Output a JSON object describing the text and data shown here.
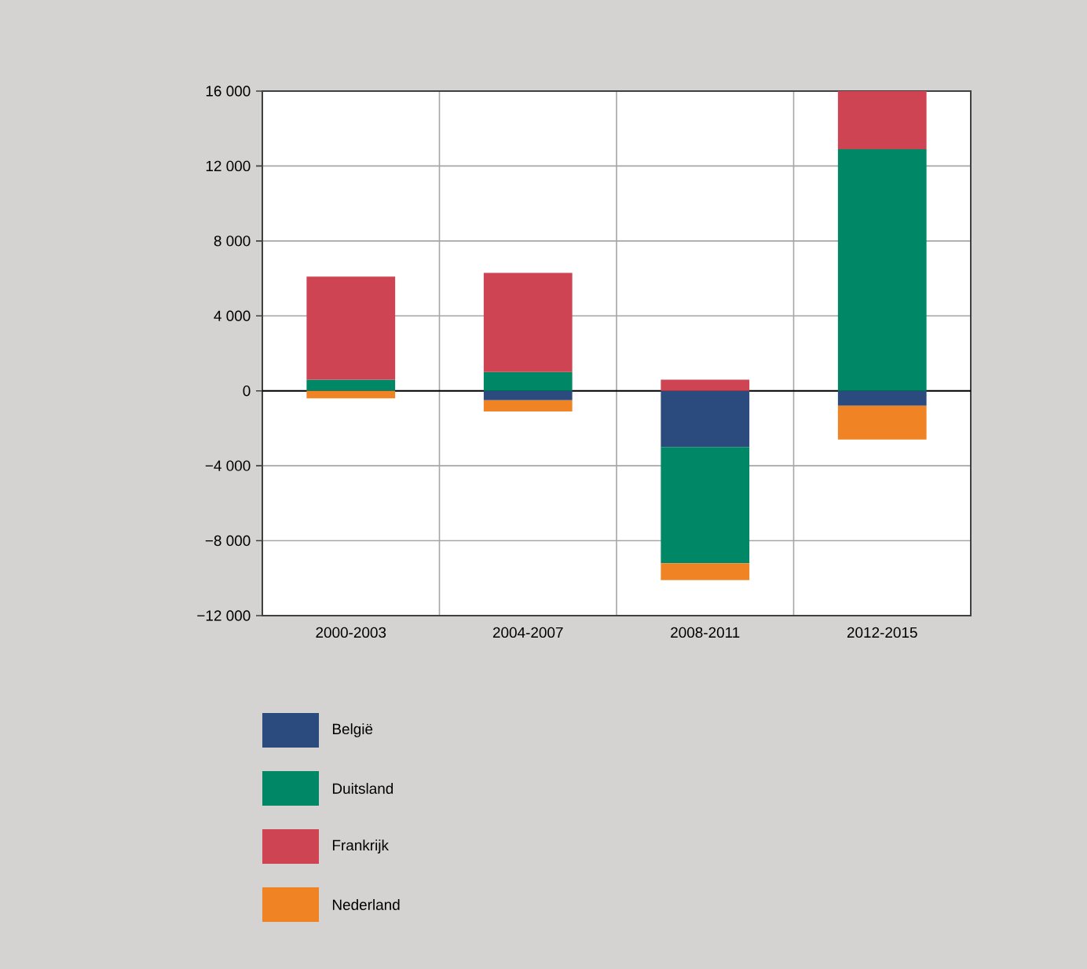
{
  "chart_data": {
    "type": "bar",
    "stacked": true,
    "categories": [
      "2000-2003",
      "2004-2007",
      "2008-2011",
      "2012-2015"
    ],
    "series": [
      {
        "name": "België",
        "color": "#2b4a7e",
        "values": [
          0,
          -500,
          -3000,
          -800
        ]
      },
      {
        "name": "Duitsland",
        "color": "#008866",
        "values": [
          600,
          1000,
          -6200,
          12900
        ]
      },
      {
        "name": "Frankrijk",
        "color": "#cf4452",
        "values": [
          5500,
          5300,
          600,
          3100
        ]
      },
      {
        "name": "Nederland",
        "color": "#f08424",
        "values": [
          -400,
          -600,
          -900,
          -1800
        ]
      }
    ],
    "ylim": [
      -12000,
      16000
    ],
    "yticks": [
      {
        "value": -12000,
        "label": "−12 000"
      },
      {
        "value": -8000,
        "label": "−8 000"
      },
      {
        "value": -4000,
        "label": "−4 000"
      },
      0,
      {
        "value": 4000,
        "label": "4 000"
      },
      {
        "value": 8000,
        "label": "8 000"
      },
      {
        "value": 12000,
        "label": "12 000"
      },
      {
        "value": 16000,
        "label": "16 000"
      }
    ],
    "grid": true,
    "legend": "bottom"
  }
}
